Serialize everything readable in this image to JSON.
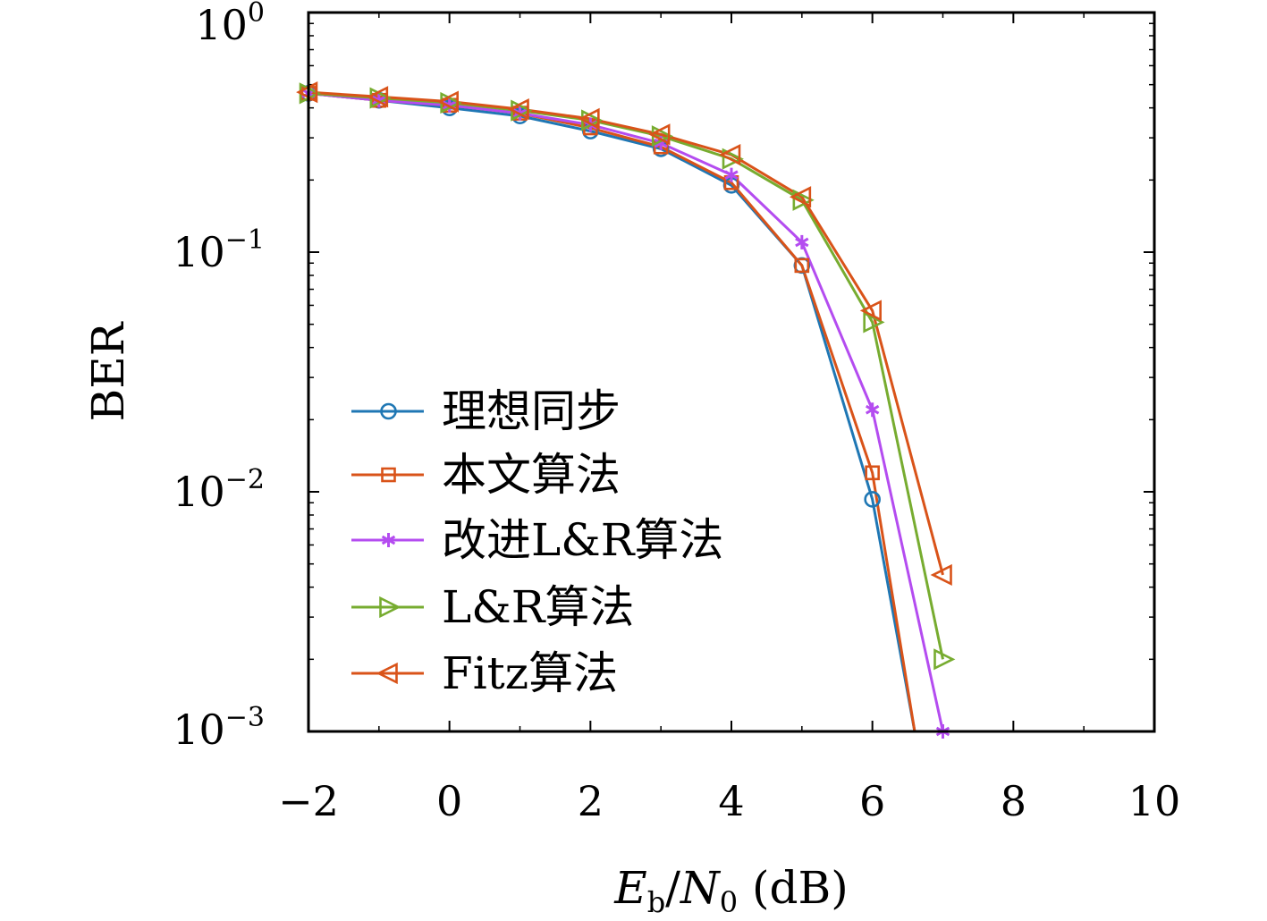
{
  "chart_data": {
    "type": "line",
    "title": "",
    "xlabel": {
      "e": "E",
      "e_sub": "b",
      "sep": "/",
      "n": "N",
      "n_sub": "0",
      "unit": " (dB)"
    },
    "ylabel": "BER",
    "xlim": [
      -2,
      10
    ],
    "ylim": [
      0.001,
      1
    ],
    "yscale": "log",
    "grid": false,
    "legend_position": "lower-left",
    "x_ticks": [
      {
        "v": -2,
        "label": "−2"
      },
      {
        "v": 0,
        "label": "0"
      },
      {
        "v": 2,
        "label": "2"
      },
      {
        "v": 4,
        "label": "4"
      },
      {
        "v": 6,
        "label": "6"
      },
      {
        "v": 8,
        "label": "8"
      },
      {
        "v": 10,
        "label": "10"
      }
    ],
    "y_ticks": [
      {
        "v": 1,
        "base": "10",
        "exp": "0"
      },
      {
        "v": 0.1,
        "base": "10",
        "exp": "−1"
      },
      {
        "v": 0.01,
        "base": "10",
        "exp": "−2"
      },
      {
        "v": 0.001,
        "base": "10",
        "exp": "−3"
      }
    ],
    "series": [
      {
        "name": "理想同步",
        "color": "#1f77b4",
        "marker": "circle",
        "x": [
          -2,
          -1,
          0,
          1,
          2,
          3,
          4,
          5,
          6,
          6.6
        ],
        "y": [
          0.46,
          0.43,
          0.4,
          0.37,
          0.32,
          0.27,
          0.19,
          0.088,
          0.0093,
          0.001
        ]
      },
      {
        "name": "本文算法",
        "color": "#d95319",
        "marker": "square",
        "x": [
          -2,
          -1,
          0,
          1,
          2,
          3,
          4,
          5,
          6,
          6.6
        ],
        "y": [
          0.46,
          0.43,
          0.41,
          0.38,
          0.33,
          0.275,
          0.195,
          0.088,
          0.012,
          0.001
        ]
      },
      {
        "name": "改进L&R算法",
        "color": "#b44cf0",
        "marker": "asterisk",
        "x": [
          -2,
          -1,
          0,
          1,
          2,
          3,
          4,
          5,
          6,
          7
        ],
        "y": [
          0.46,
          0.43,
          0.41,
          0.38,
          0.34,
          0.285,
          0.21,
          0.11,
          0.022,
          0.001
        ]
      },
      {
        "name": "L&R算法",
        "color": "#77ac30",
        "marker": "triangle-right",
        "x": [
          -2,
          -1,
          0,
          1,
          2,
          3,
          4,
          5,
          6,
          7
        ],
        "y": [
          0.46,
          0.44,
          0.42,
          0.39,
          0.355,
          0.305,
          0.245,
          0.165,
          0.051,
          0.002
        ]
      },
      {
        "name": "Fitz算法",
        "color": "#d95319",
        "marker": "triangle-left",
        "x": [
          -2,
          -1,
          0,
          1,
          2,
          3,
          4,
          5,
          6,
          7
        ],
        "y": [
          0.465,
          0.445,
          0.425,
          0.395,
          0.36,
          0.31,
          0.255,
          0.17,
          0.057,
          0.0045
        ]
      }
    ]
  }
}
